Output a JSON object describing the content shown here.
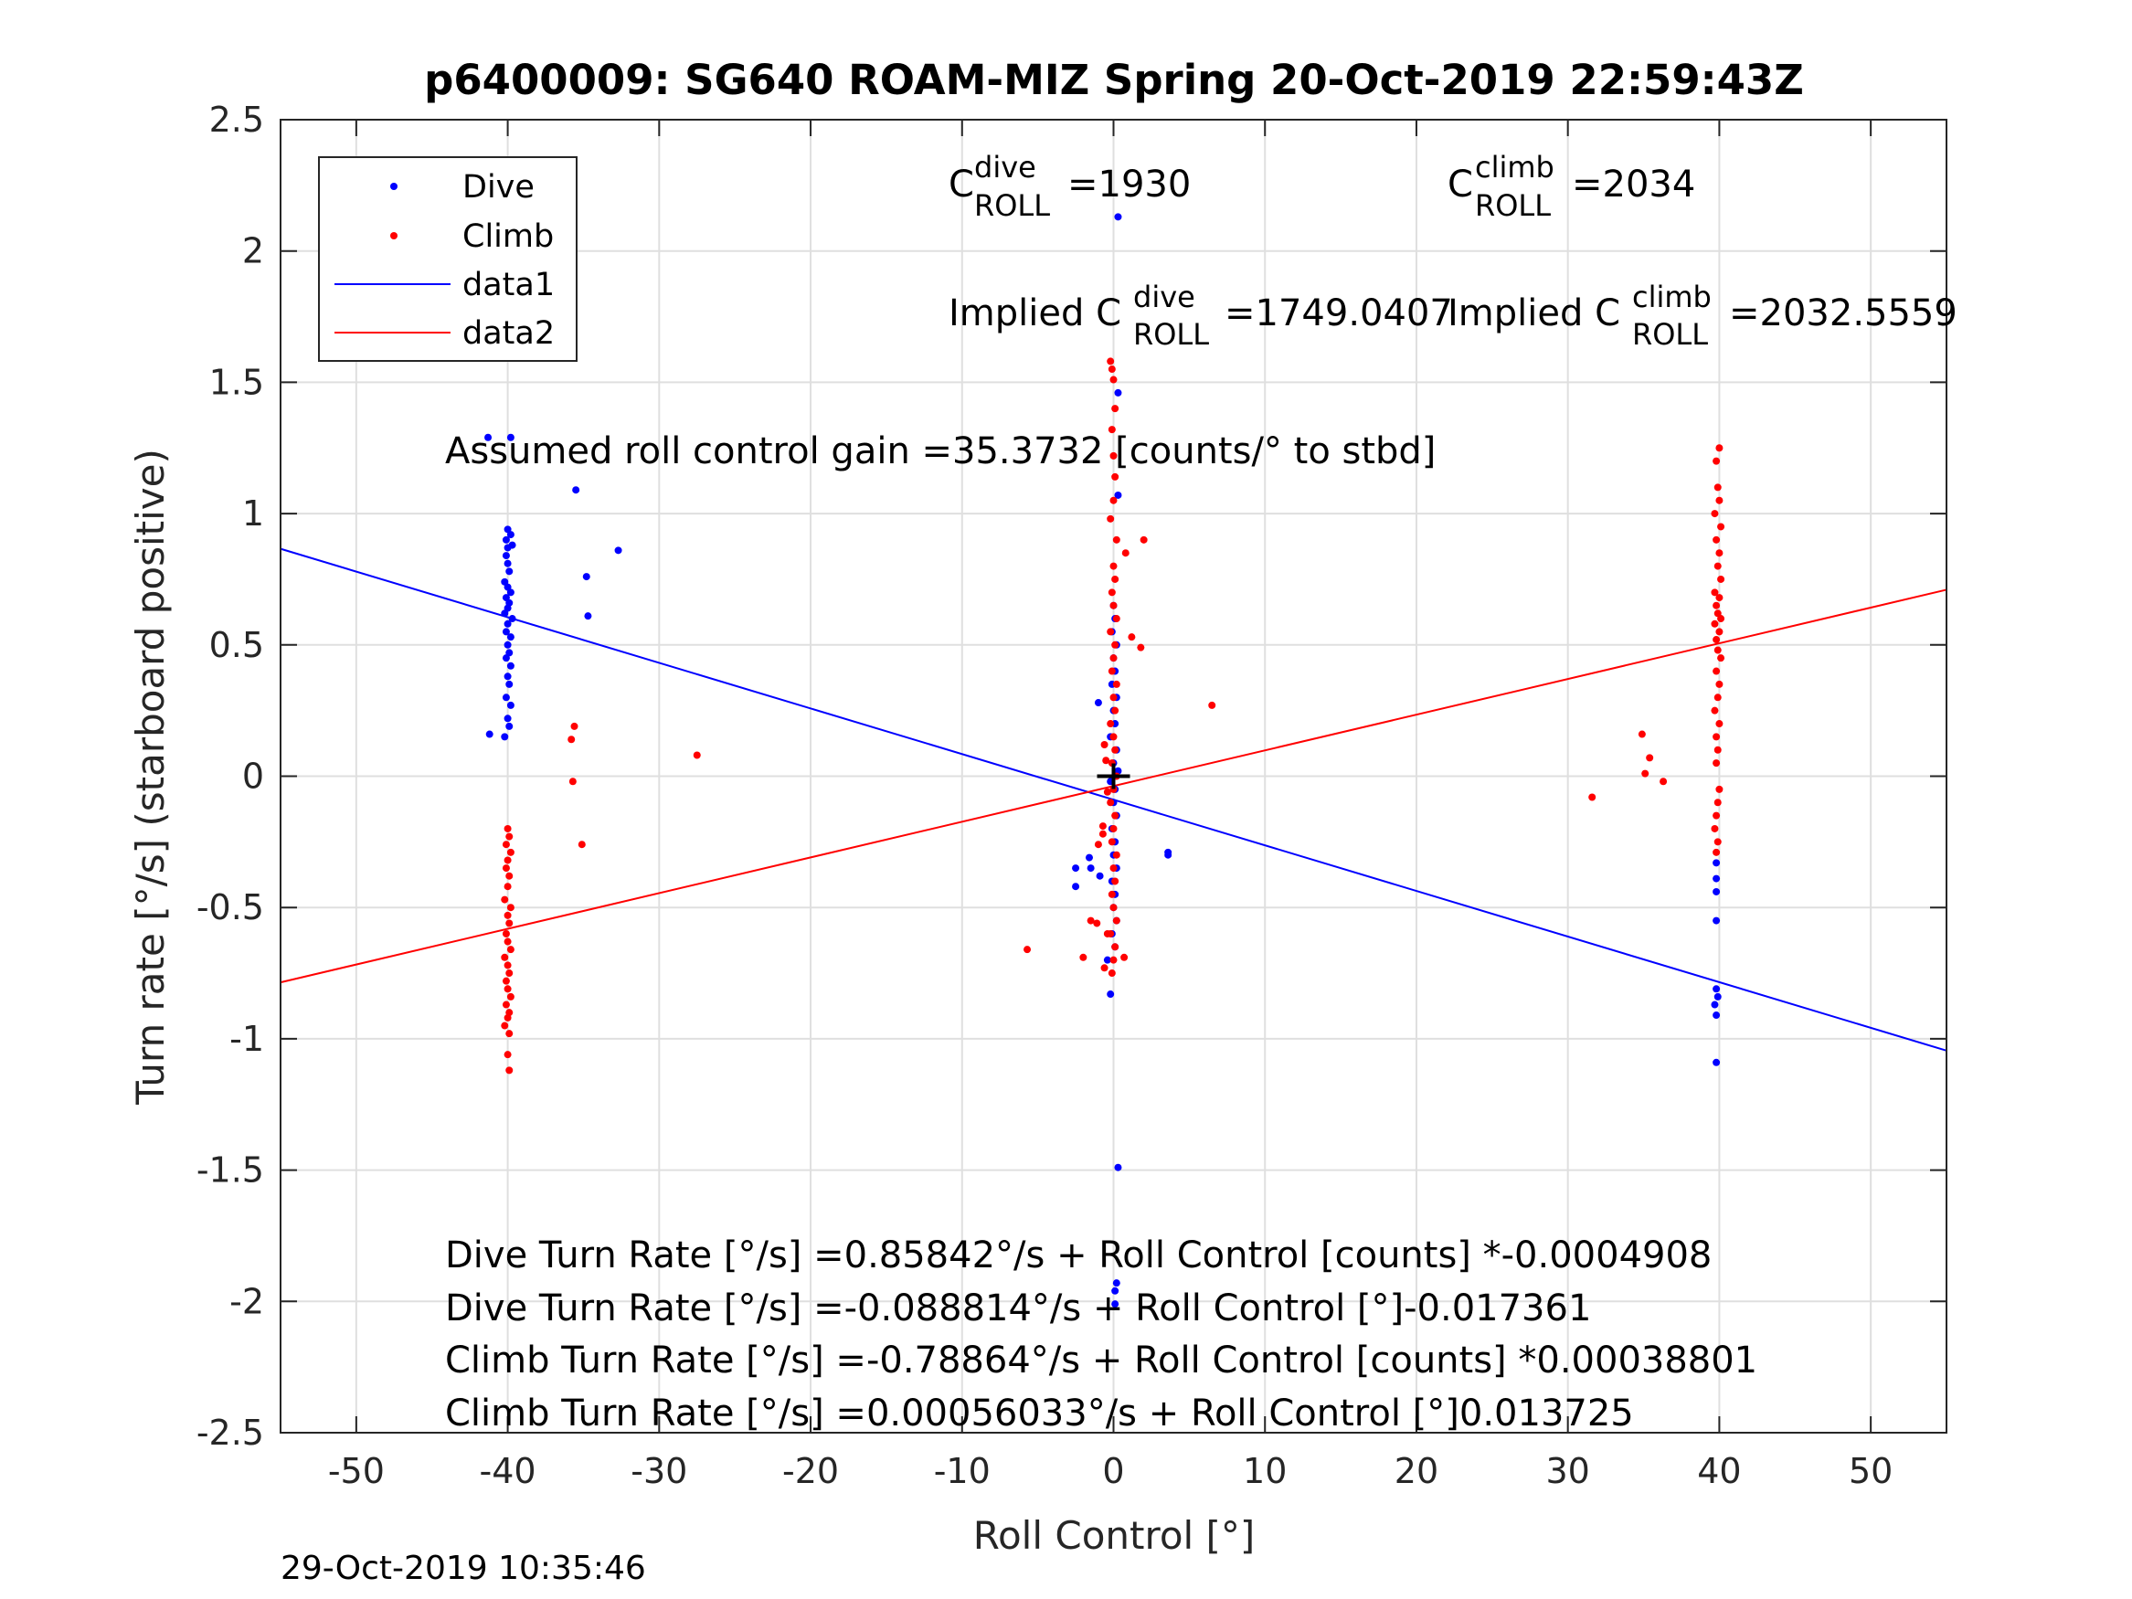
{
  "chart_data": {
    "type": "scatter",
    "title": "p6400009: SG640 ROAM-MIZ Spring 20-Oct-2019 22:59:43Z",
    "xlabel": "Roll Control [°]",
    "ylabel": "Turn rate [°/s] (starboard positive)",
    "xlim": [
      -55,
      55
    ],
    "ylim": [
      -2.5,
      2.5
    ],
    "xticks": [
      -50,
      -40,
      -30,
      -20,
      -10,
      0,
      10,
      20,
      30,
      40,
      50
    ],
    "xtick_labels": [
      "-50",
      "-40",
      "-30",
      "-20",
      "-10",
      "0",
      "10",
      "20",
      "30",
      "40",
      "50"
    ],
    "yticks": [
      -2.5,
      -2,
      -1.5,
      -1,
      -0.5,
      0,
      0.5,
      1,
      1.5,
      2,
      2.5
    ],
    "ytick_labels": [
      "-2.5",
      "-2",
      "-1.5",
      "-1",
      "-0.5",
      "0",
      "0.5",
      "1",
      "1.5",
      "2",
      "2.5"
    ],
    "grid": true,
    "legend_position": "top-left",
    "legend": [
      "Dive",
      "Climb",
      "data1",
      "data2"
    ],
    "colors": {
      "dive": "#0000ff",
      "climb": "#ff0000",
      "center_marker": "#000000"
    },
    "series": [
      {
        "name": "Dive",
        "kind": "points",
        "color": "#0000ff",
        "points": [
          [
            -41.3,
            1.29
          ],
          [
            -39.8,
            1.29
          ],
          [
            -35.5,
            1.09
          ],
          [
            -32.7,
            0.86
          ],
          [
            -34.8,
            0.76
          ],
          [
            -34.7,
            0.61
          ],
          [
            -41.2,
            0.16
          ],
          [
            -40.0,
            0.94
          ],
          [
            -39.8,
            0.92
          ],
          [
            -40.1,
            0.9
          ],
          [
            -40.0,
            0.87
          ],
          [
            -39.7,
            0.88
          ],
          [
            -40.1,
            0.84
          ],
          [
            -40.0,
            0.81
          ],
          [
            -39.9,
            0.78
          ],
          [
            -40.2,
            0.74
          ],
          [
            -40.0,
            0.72
          ],
          [
            -39.8,
            0.7
          ],
          [
            -40.1,
            0.68
          ],
          [
            -39.9,
            0.66
          ],
          [
            -40.0,
            0.64
          ],
          [
            -40.2,
            0.62
          ],
          [
            -39.7,
            0.6
          ],
          [
            -40.0,
            0.58
          ],
          [
            -40.1,
            0.55
          ],
          [
            -39.8,
            0.53
          ],
          [
            -40.0,
            0.5
          ],
          [
            -39.9,
            0.47
          ],
          [
            -40.1,
            0.45
          ],
          [
            -39.8,
            0.42
          ],
          [
            -40.0,
            0.38
          ],
          [
            -39.9,
            0.35
          ],
          [
            -40.1,
            0.3
          ],
          [
            -39.8,
            0.27
          ],
          [
            -40.0,
            0.22
          ],
          [
            -39.9,
            0.19
          ],
          [
            -40.2,
            0.15
          ],
          [
            0.3,
            2.13
          ],
          [
            0.3,
            1.46
          ],
          [
            0.3,
            1.07
          ],
          [
            -1.0,
            0.28
          ],
          [
            -1.5,
            -0.35
          ],
          [
            -2.5,
            -0.35
          ],
          [
            -2.5,
            -0.42
          ],
          [
            -1.6,
            -0.31
          ],
          [
            -0.9,
            -0.38
          ],
          [
            3.6,
            -0.29
          ],
          [
            3.6,
            -0.3
          ],
          [
            -0.4,
            -0.7
          ],
          [
            -0.2,
            -0.83
          ],
          [
            0.3,
            -1.49
          ],
          [
            0.2,
            -1.93
          ],
          [
            0.1,
            -1.96
          ],
          [
            0.1,
            -2.01
          ],
          [
            0.0,
            0.65
          ],
          [
            0.1,
            0.6
          ],
          [
            -0.1,
            0.55
          ],
          [
            0.2,
            0.5
          ],
          [
            0.0,
            0.45
          ],
          [
            0.1,
            0.4
          ],
          [
            -0.1,
            0.35
          ],
          [
            0.2,
            0.3
          ],
          [
            0.0,
            0.25
          ],
          [
            0.1,
            0.2
          ],
          [
            -0.2,
            0.15
          ],
          [
            0.2,
            0.1
          ],
          [
            0.0,
            0.05
          ],
          [
            0.3,
            0.02
          ],
          [
            -0.2,
            -0.02
          ],
          [
            0.1,
            -0.05
          ],
          [
            0.0,
            -0.1
          ],
          [
            0.2,
            -0.15
          ],
          [
            -0.1,
            -0.2
          ],
          [
            0.1,
            -0.25
          ],
          [
            0.0,
            -0.3
          ],
          [
            0.2,
            -0.35
          ],
          [
            -0.1,
            -0.4
          ],
          [
            0.1,
            -0.45
          ],
          [
            0.0,
            -0.5
          ],
          [
            0.2,
            -0.55
          ],
          [
            -0.1,
            -0.6
          ],
          [
            0.1,
            -0.65
          ],
          [
            39.8,
            -0.33
          ],
          [
            39.8,
            -0.39
          ],
          [
            39.8,
            -0.44
          ],
          [
            39.8,
            -0.55
          ],
          [
            39.8,
            -0.81
          ],
          [
            39.9,
            -0.84
          ],
          [
            39.7,
            -0.87
          ],
          [
            39.8,
            -0.91
          ],
          [
            39.8,
            -1.09
          ]
        ]
      },
      {
        "name": "Climb",
        "kind": "points",
        "color": "#ff0000",
        "points": [
          [
            -40.0,
            -0.2
          ],
          [
            -39.9,
            -0.23
          ],
          [
            -40.1,
            -0.26
          ],
          [
            -39.8,
            -0.29
          ],
          [
            -40.0,
            -0.32
          ],
          [
            -40.1,
            -0.35
          ],
          [
            -39.9,
            -0.38
          ],
          [
            -40.0,
            -0.42
          ],
          [
            -40.2,
            -0.47
          ],
          [
            -39.8,
            -0.5
          ],
          [
            -40.0,
            -0.53
          ],
          [
            -39.9,
            -0.56
          ],
          [
            -40.1,
            -0.6
          ],
          [
            -40.0,
            -0.63
          ],
          [
            -39.8,
            -0.66
          ],
          [
            -40.2,
            -0.69
          ],
          [
            -40.0,
            -0.72
          ],
          [
            -39.9,
            -0.75
          ],
          [
            -40.1,
            -0.78
          ],
          [
            -40.0,
            -0.81
          ],
          [
            -39.8,
            -0.84
          ],
          [
            -40.1,
            -0.87
          ],
          [
            -39.9,
            -0.9
          ],
          [
            -40.0,
            -0.92
          ],
          [
            -40.2,
            -0.95
          ],
          [
            -39.9,
            -0.98
          ],
          [
            -40.0,
            -1.06
          ],
          [
            -39.9,
            -1.12
          ],
          [
            -35.8,
            0.14
          ],
          [
            -35.6,
            0.19
          ],
          [
            -35.7,
            -0.02
          ],
          [
            -35.1,
            -0.26
          ],
          [
            -27.5,
            0.08
          ],
          [
            -0.2,
            1.58
          ],
          [
            -0.1,
            1.55
          ],
          [
            0.0,
            1.51
          ],
          [
            0.1,
            1.4
          ],
          [
            -0.1,
            1.32
          ],
          [
            0.0,
            1.22
          ],
          [
            0.1,
            1.14
          ],
          [
            0.0,
            1.05
          ],
          [
            -0.2,
            0.98
          ],
          [
            0.2,
            0.9
          ],
          [
            0.8,
            0.85
          ],
          [
            2.0,
            0.9
          ],
          [
            1.2,
            0.53
          ],
          [
            1.8,
            0.49
          ],
          [
            6.5,
            0.27
          ],
          [
            0.0,
            0.8
          ],
          [
            0.1,
            0.75
          ],
          [
            -0.1,
            0.7
          ],
          [
            0.0,
            0.65
          ],
          [
            0.2,
            0.6
          ],
          [
            -0.2,
            0.55
          ],
          [
            0.1,
            0.5
          ],
          [
            0.0,
            0.45
          ],
          [
            -0.1,
            0.4
          ],
          [
            0.2,
            0.35
          ],
          [
            0.0,
            0.3
          ],
          [
            0.1,
            0.25
          ],
          [
            -0.2,
            0.2
          ],
          [
            0.0,
            0.15
          ],
          [
            0.1,
            0.1
          ],
          [
            -0.1,
            0.05
          ],
          [
            0.2,
            0.0
          ],
          [
            0.0,
            -0.05
          ],
          [
            -0.2,
            -0.1
          ],
          [
            0.1,
            -0.15
          ],
          [
            0.0,
            -0.2
          ],
          [
            -0.1,
            -0.25
          ],
          [
            0.2,
            -0.3
          ],
          [
            0.0,
            -0.35
          ],
          [
            0.1,
            -0.4
          ],
          [
            -0.1,
            -0.45
          ],
          [
            0.0,
            -0.5
          ],
          [
            0.2,
            -0.55
          ],
          [
            -0.2,
            -0.6
          ],
          [
            0.1,
            -0.65
          ],
          [
            0.0,
            -0.7
          ],
          [
            -0.1,
            -0.75
          ],
          [
            -0.6,
            0.12
          ],
          [
            -0.5,
            0.06
          ],
          [
            -0.4,
            -0.06
          ],
          [
            -0.7,
            -0.19
          ],
          [
            -0.7,
            -0.22
          ],
          [
            -1.0,
            -0.26
          ],
          [
            -0.4,
            -0.6
          ],
          [
            -1.5,
            -0.55
          ],
          [
            -1.1,
            -0.56
          ],
          [
            -2.0,
            -0.69
          ],
          [
            -0.6,
            -0.73
          ],
          [
            0.7,
            -0.69
          ],
          [
            -5.7,
            -0.66
          ],
          [
            40.0,
            1.25
          ],
          [
            39.8,
            1.2
          ],
          [
            39.9,
            1.1
          ],
          [
            40.0,
            1.05
          ],
          [
            39.7,
            1.0
          ],
          [
            40.1,
            0.95
          ],
          [
            39.8,
            0.9
          ],
          [
            40.0,
            0.85
          ],
          [
            39.9,
            0.8
          ],
          [
            40.1,
            0.75
          ],
          [
            39.7,
            0.7
          ],
          [
            40.0,
            0.68
          ],
          [
            39.8,
            0.65
          ],
          [
            39.9,
            0.62
          ],
          [
            40.1,
            0.6
          ],
          [
            39.7,
            0.58
          ],
          [
            40.0,
            0.55
          ],
          [
            39.8,
            0.52
          ],
          [
            39.9,
            0.48
          ],
          [
            40.1,
            0.45
          ],
          [
            39.8,
            0.4
          ],
          [
            40.0,
            0.35
          ],
          [
            39.9,
            0.3
          ],
          [
            39.7,
            0.25
          ],
          [
            40.0,
            0.2
          ],
          [
            39.8,
            0.15
          ],
          [
            39.9,
            0.1
          ],
          [
            39.8,
            0.05
          ],
          [
            40.0,
            -0.05
          ],
          [
            39.9,
            -0.1
          ],
          [
            39.8,
            -0.15
          ],
          [
            39.7,
            -0.2
          ],
          [
            39.9,
            -0.25
          ],
          [
            39.8,
            -0.29
          ],
          [
            34.9,
            0.16
          ],
          [
            35.4,
            0.07
          ],
          [
            35.1,
            0.01
          ],
          [
            36.3,
            -0.02
          ],
          [
            31.6,
            -0.08
          ]
        ]
      },
      {
        "name": "data1",
        "kind": "line",
        "color": "#0000ff",
        "x": [
          -55,
          55
        ],
        "y": [
          0.866,
          -1.045
        ]
      },
      {
        "name": "data2",
        "kind": "line",
        "color": "#ff0000",
        "x": [
          -55,
          55
        ],
        "y": [
          -0.785,
          0.71
        ]
      }
    ],
    "center_marker": {
      "x": 0,
      "y": 0,
      "symbol": "+"
    },
    "annotations": {
      "c_dive_main": "C",
      "c_dive_sup": "dive",
      "c_dive_sub": "ROLL",
      "c_dive_val": "=1930",
      "c_climb_main": "C",
      "c_climb_sup": "climb",
      "c_climb_sub": "ROLL",
      "c_climb_val": "=2034",
      "implied_dive_prefix": "Implied C",
      "implied_dive_sup": "dive",
      "implied_dive_sub": "ROLL",
      "implied_dive_val": "=1749.0407",
      "implied_climb_prefix": "Implied C",
      "implied_climb_sup": "climb",
      "implied_climb_sub": "ROLL",
      "implied_climb_val": "=2032.5559",
      "gain": "Assumed roll control gain =35.3732 [counts/° to stbd]",
      "eq1": "Dive Turn Rate [°/s] =0.85842°/s + Roll Control [counts] *-0.0004908",
      "eq2": "Dive Turn Rate [°/s] =-0.088814°/s + Roll Control [°]-0.017361",
      "eq3": "Climb Turn Rate [°/s] =-0.78864°/s + Roll Control [counts] *0.00038801",
      "eq4": "Climb Turn Rate [°/s] =0.00056033°/s + Roll Control [°]0.013725"
    },
    "footer": "29-Oct-2019 10:35:46"
  }
}
